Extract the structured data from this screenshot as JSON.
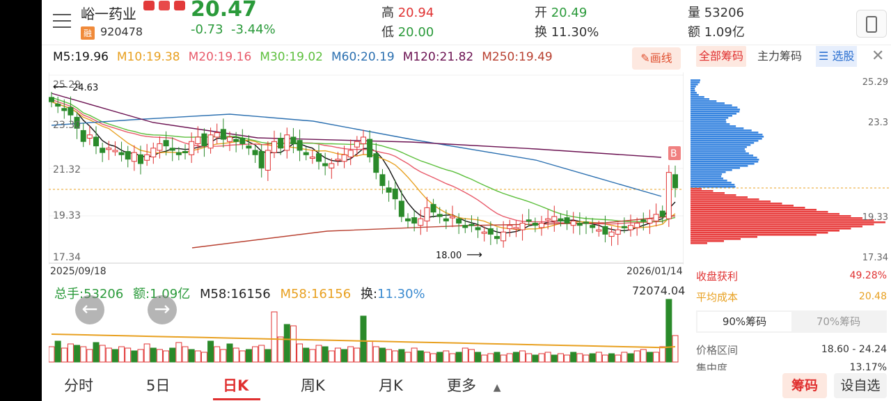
{
  "header": {
    "name": "峪一药业",
    "tag_rong": "融",
    "code": "920478",
    "price": "20.47",
    "change": "-0.73",
    "change_pct": "-3.44%",
    "high_label": "高",
    "high": "20.94",
    "low_label": "低",
    "low": "20.00",
    "open_label": "开",
    "open": "20.49",
    "turnover_label": "换",
    "turnover": "11.30%",
    "volume_label": "量",
    "volume": "53206",
    "amount_label": "额",
    "amount": "1.09亿"
  },
  "ma_legend": [
    {
      "label": "M5:19.96",
      "color": "#111111"
    },
    {
      "label": "M10:19.38",
      "color": "#e8a020"
    },
    {
      "label": "M20:19.16",
      "color": "#e85a6a"
    },
    {
      "label": "M30:19.02",
      "color": "#5cbf3c"
    },
    {
      "label": "M60:20.19",
      "color": "#2a6fb0"
    },
    {
      "label": "M120:21.82",
      "color": "#6a1050"
    },
    {
      "label": "M250:19.49",
      "color": "#b84030"
    }
  ],
  "draw_button": "画线",
  "price_axis": {
    "labels": [
      "25.29",
      "23.30",
      "21.32",
      "19.33",
      "17.34"
    ],
    "max_label": "24.63",
    "min_label": "18.00",
    "date_start": "2025/09/18",
    "date_end": "2026/01/14",
    "marker": "B"
  },
  "volume_legend": {
    "total": "总手:53206",
    "amount": "额:1.09亿",
    "m58a": "M58:16156",
    "m58b": "M58:16156",
    "turnover_label": "换:",
    "turnover": "11.30%",
    "max": "72074.04"
  },
  "chip_panel": {
    "tabs": [
      "全部筹码",
      "主力筹码",
      "选股"
    ],
    "axis": [
      "25.29",
      "23.3",
      "19.33",
      "17.34"
    ],
    "profit_label": "收盘获利",
    "profit_value": "49.28%",
    "avg_cost_label": "平均成本",
    "avg_cost_value": "20.48",
    "seg": [
      "90%筹码",
      "70%筹码"
    ],
    "range_label": "价格区间",
    "range_value": "18.60 - 24.24",
    "conc_label": "集中度",
    "conc_value": "13.17%"
  },
  "bottom_tabs": [
    "分时",
    "5日",
    "日K",
    "周K",
    "月K",
    "更多"
  ],
  "bottom_buttons": {
    "chips": "筹码",
    "settings": "设自选"
  },
  "colors": {
    "up": "#e03030",
    "down": "#2a8a2a",
    "accent": "#e03030"
  }
}
